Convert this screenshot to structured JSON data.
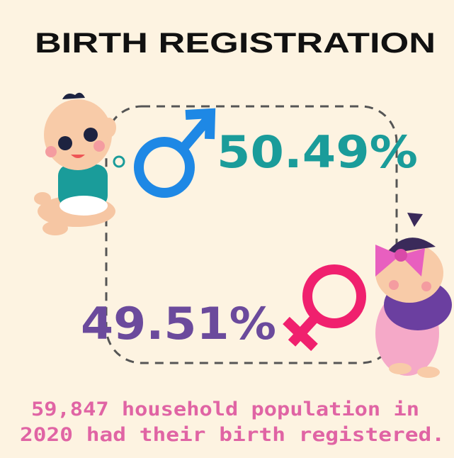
{
  "header": {
    "title": "BIRTH REGISTRATION"
  },
  "male": {
    "percent": "50.49%"
  },
  "female": {
    "percent": "49.51%"
  },
  "caption": {
    "lines": [
      "59,847 household population in",
      "2020 had their birth registered."
    ]
  }
}
